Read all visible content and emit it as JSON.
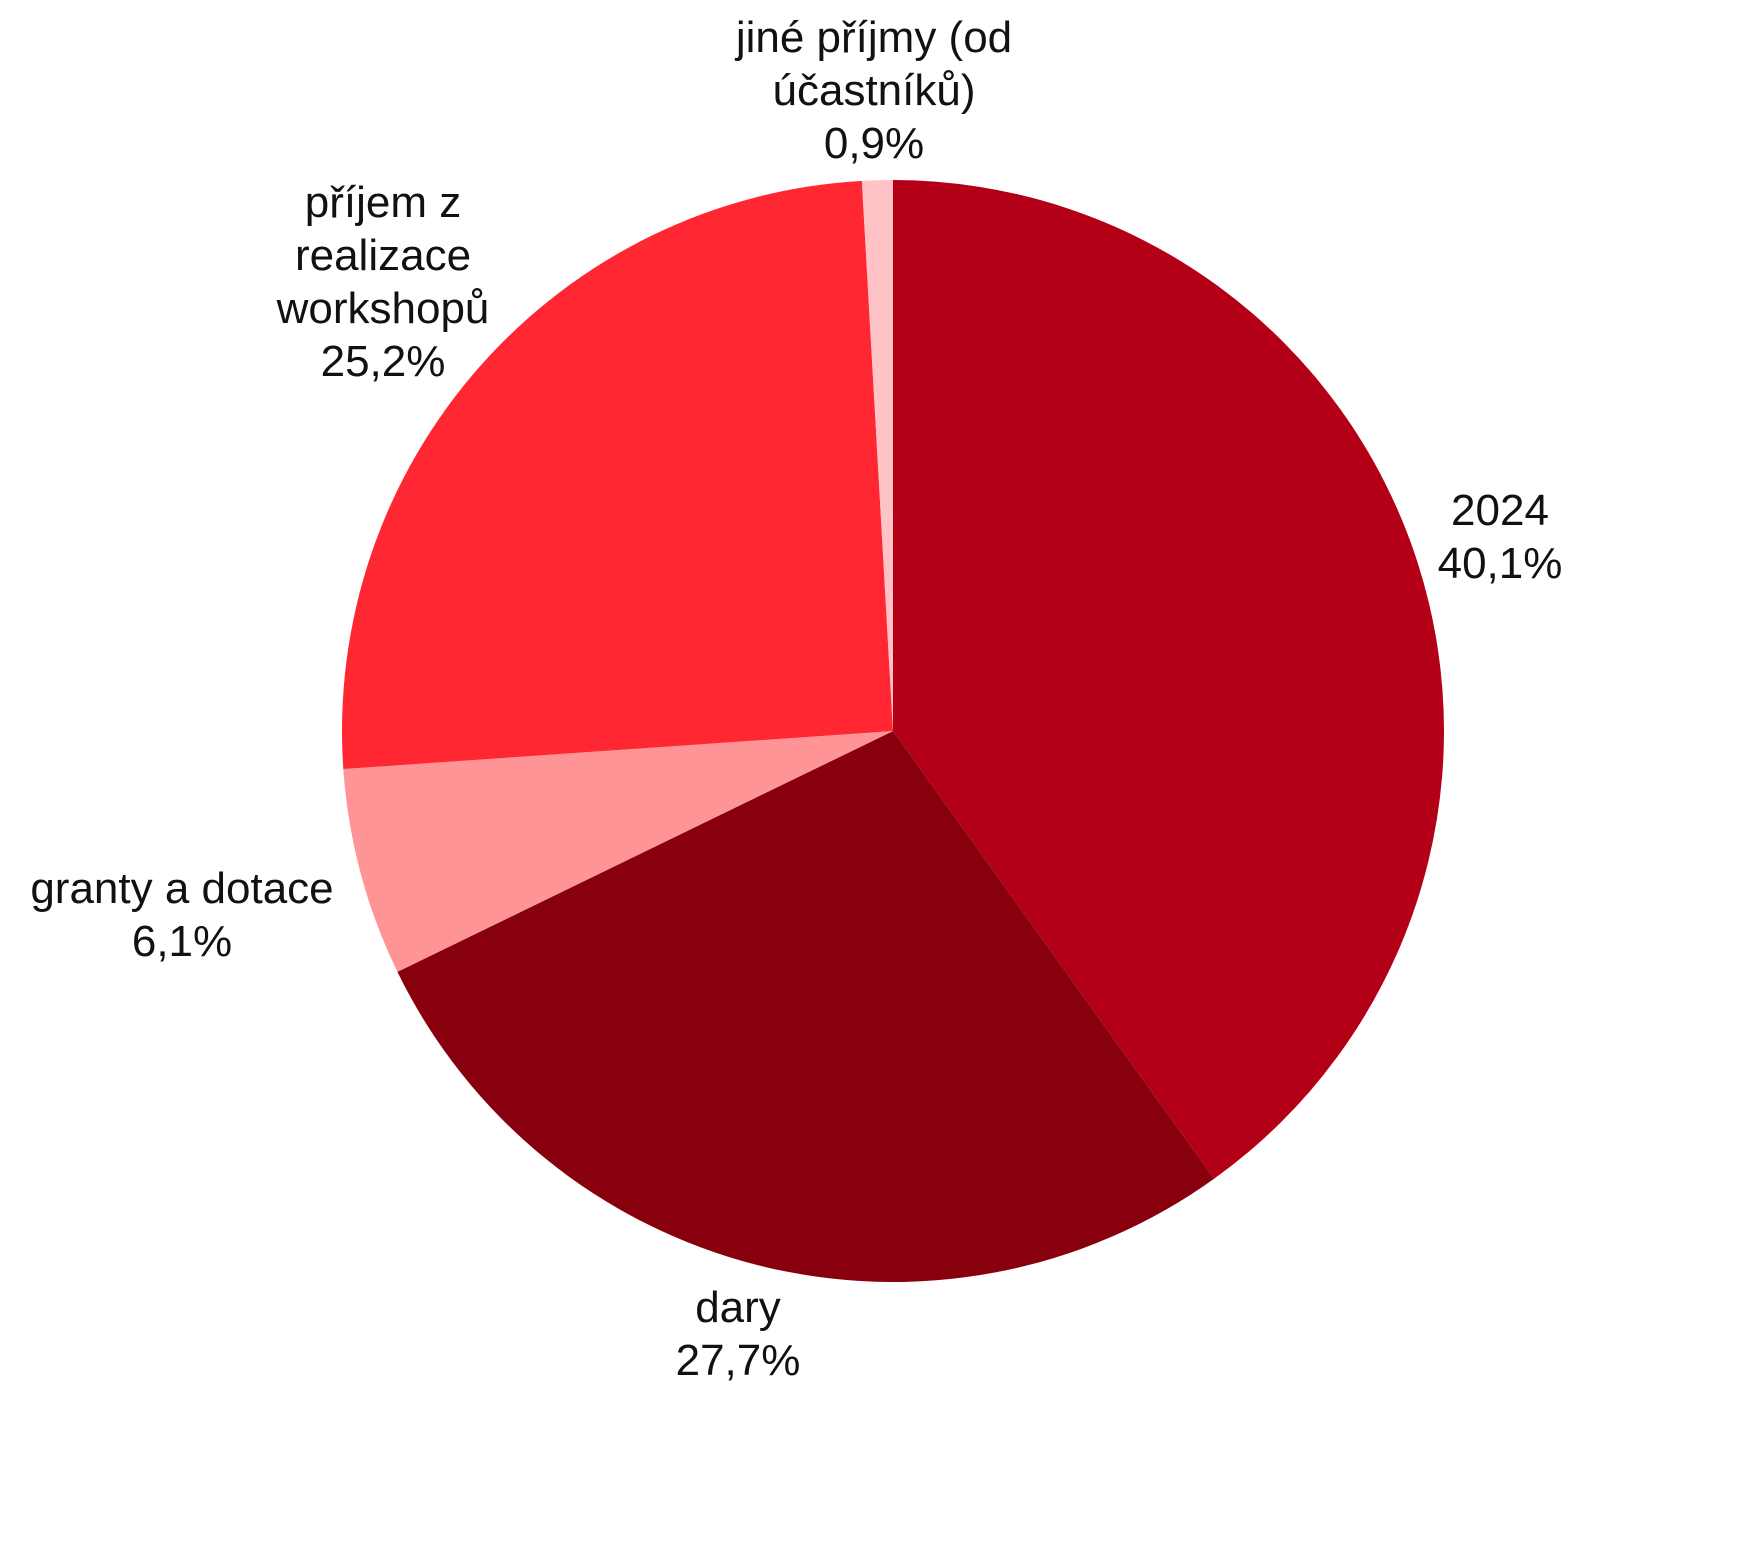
{
  "chart_data": {
    "type": "pie",
    "title": "",
    "slices": [
      {
        "lines": [
          "2024"
        ],
        "value_label": "40,1%",
        "value": 40.1,
        "color": "#b30016"
      },
      {
        "lines": [
          "dary"
        ],
        "value_label": "27,7%",
        "value": 27.7,
        "color": "#88000e"
      },
      {
        "lines": [
          "granty a dotace"
        ],
        "value_label": "6,1%",
        "value": 6.1,
        "color": "#ff9497"
      },
      {
        "lines": [
          "příjem z",
          "realizace",
          "workshopů"
        ],
        "value_label": "25,2%",
        "value": 25.2,
        "color": "#ff2832"
      },
      {
        "lines": [
          "jiné příjmy (od",
          "účastníků)"
        ],
        "value_label": "0,9%",
        "value": 0.9,
        "color": "#ffc3c7"
      }
    ],
    "start_angle": "12 o'clock",
    "direction": "clockwise",
    "legend": "none"
  }
}
